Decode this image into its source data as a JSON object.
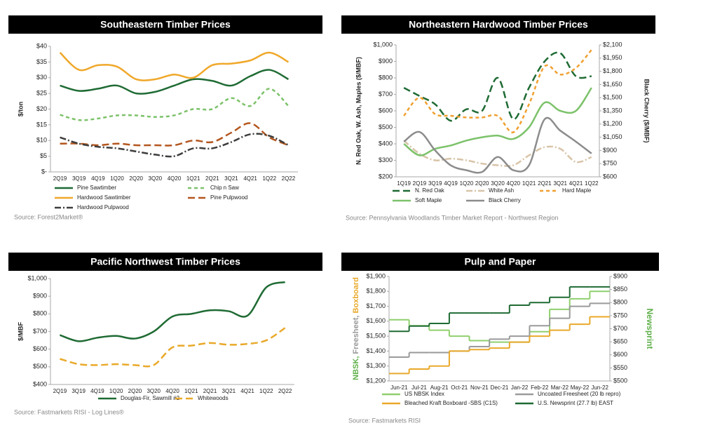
{
  "chart_data": [
    {
      "type": "line",
      "title": "Southeastern Timber Prices",
      "y_label": "$/ton",
      "source": "Source: Forest2Market®",
      "categories": [
        "2Q19",
        "3Q19",
        "4Q19",
        "1Q20",
        "2Q20",
        "3Q20",
        "4Q20",
        "1Q21",
        "2Q21",
        "3Q21",
        "4Q21",
        "1Q22",
        "2Q22"
      ],
      "ylim": [
        0,
        40
      ],
      "yticks": [
        {
          "value": 0,
          "label": "$-"
        },
        {
          "value": 5,
          "label": "$5"
        },
        {
          "value": 10,
          "label": "$10"
        },
        {
          "value": 15,
          "label": "$15"
        },
        {
          "value": 20,
          "label": "$20"
        },
        {
          "value": 25,
          "label": "$25"
        },
        {
          "value": 30,
          "label": "$30"
        },
        {
          "value": 35,
          "label": "$35"
        },
        {
          "value": 40,
          "label": "$40"
        }
      ],
      "series": [
        {
          "name": "Pine Sawtimber",
          "color": "#1f6b34",
          "dash": "solid",
          "values": [
            27.5,
            25.8,
            26.5,
            27.5,
            25,
            25.5,
            27.5,
            29.5,
            29,
            27.5,
            30.5,
            32.5,
            29.5
          ]
        },
        {
          "name": "Chip n Saw",
          "color": "#7cc26a",
          "dash": "dash",
          "values": [
            18.2,
            16.5,
            17,
            18,
            18,
            17.5,
            18,
            20,
            20,
            23.5,
            21,
            26.5,
            21
          ]
        },
        {
          "name": "Hardwood Sawtimber",
          "color": "#f0a82a",
          "dash": "solid",
          "values": [
            38,
            32.5,
            34,
            33.5,
            29.5,
            29.5,
            31,
            30,
            34,
            34.5,
            35.5,
            38,
            35
          ]
        },
        {
          "name": "Pine Pulpwood",
          "color": "#b3561e",
          "dash": "longdash",
          "values": [
            9,
            9,
            8.5,
            9,
            8.5,
            8.5,
            8.5,
            10,
            9.5,
            12.5,
            15.5,
            11,
            8.5
          ]
        },
        {
          "name": "Hardwood Pulpwood",
          "color": "#3d3d3d",
          "dash": "dashdot",
          "values": [
            11,
            9,
            8,
            7.5,
            6.5,
            5.5,
            5,
            7.5,
            7.5,
            9.5,
            12,
            11.5,
            8.5
          ]
        }
      ]
    },
    {
      "type": "line",
      "title": "Northeastern Hardwood Timber Prices",
      "y_label": "N. Red Oak, W. Ash, Maples ($/MBF)",
      "y2_label": "Black Cherry ($/MBF)",
      "source": "Source: Pennsylvania Woodlands Timber Market Report - Northwest Region",
      "categories": [
        "1Q19",
        "2Q19",
        "3Q19",
        "4Q19",
        "1Q20",
        "2Q20",
        "3Q20",
        "4Q20",
        "1Q21",
        "2Q21",
        "3Q21",
        "4Q21",
        "1Q22"
      ],
      "ylim": [
        200,
        1000
      ],
      "yticks": [
        {
          "value": 200,
          "label": "$200"
        },
        {
          "value": 300,
          "label": "$300"
        },
        {
          "value": 400,
          "label": "$400"
        },
        {
          "value": 500,
          "label": "$500"
        },
        {
          "value": 600,
          "label": "$600"
        },
        {
          "value": 700,
          "label": "$700"
        },
        {
          "value": 800,
          "label": "$800"
        },
        {
          "value": 900,
          "label": "$900"
        },
        {
          "value": 1000,
          "label": "$1,000"
        }
      ],
      "y2lim": [
        600,
        2100
      ],
      "y2ticks": [
        {
          "value": 600,
          "label": "$600"
        },
        {
          "value": 750,
          "label": "$750"
        },
        {
          "value": 900,
          "label": "$900"
        },
        {
          "value": 1050,
          "label": "$1,050"
        },
        {
          "value": 1200,
          "label": "$1,200"
        },
        {
          "value": 1350,
          "label": "$1,350"
        },
        {
          "value": 1500,
          "label": "$1,500"
        },
        {
          "value": 1650,
          "label": "$1,650"
        },
        {
          "value": 1800,
          "label": "$1,800"
        },
        {
          "value": 1950,
          "label": "$1,950"
        },
        {
          "value": 2100,
          "label": "$2,100"
        }
      ],
      "series": [
        {
          "name": "N. Red Oak",
          "color": "#1f6b34",
          "dash": "longdash",
          "values": [
            740,
            690,
            640,
            540,
            610,
            600,
            800,
            550,
            740,
            900,
            950,
            810,
            810
          ]
        },
        {
          "name": "White Ash",
          "color": "#d8c4a8",
          "dash": "dashdot",
          "values": [
            420,
            340,
            300,
            310,
            300,
            280,
            270,
            270,
            330,
            380,
            370,
            290,
            320
          ]
        },
        {
          "name": "Hard Maple",
          "color": "#f0a030",
          "dash": "dash",
          "values": [
            570,
            680,
            580,
            570,
            560,
            560,
            570,
            470,
            640,
            870,
            820,
            860,
            970
          ]
        },
        {
          "name": "Soft Maple",
          "color": "#7cc26a",
          "dash": "solid",
          "values": [
            400,
            330,
            370,
            390,
            420,
            440,
            450,
            430,
            500,
            650,
            600,
            600,
            740
          ]
        },
        {
          "name": "Black Cherry",
          "color": "#8c8c8c",
          "dash": "solid",
          "axis": "y2",
          "values": [
            1000,
            1110,
            900,
            730,
            675,
            655,
            825,
            675,
            730,
            1255,
            1125,
            1000,
            865
          ]
        }
      ]
    },
    {
      "type": "line",
      "title": "Pacific Northwest Timber Prices",
      "y_label": "$/MBF",
      "source": "Source: Fastmarkets RISI - Log Lines®",
      "categories": [
        "2Q19",
        "3Q19",
        "4Q19",
        "1Q20",
        "2Q20",
        "3Q20",
        "4Q20",
        "1Q21",
        "2Q21",
        "3Q21",
        "4Q21",
        "1Q22",
        "2Q22"
      ],
      "ylim": [
        400,
        1000
      ],
      "yticks": [
        {
          "value": 400,
          "label": "$400"
        },
        {
          "value": 500,
          "label": "$500"
        },
        {
          "value": 600,
          "label": "$600"
        },
        {
          "value": 700,
          "label": "$700"
        },
        {
          "value": 800,
          "label": "$800"
        },
        {
          "value": 900,
          "label": "$900"
        },
        {
          "value": 1000,
          "label": "$1,000"
        }
      ],
      "series": [
        {
          "name": "Douglas-Fir, Sawmill #2",
          "color": "#1f6b34",
          "dash": "solid",
          "values": [
            680,
            645,
            665,
            675,
            660,
            700,
            785,
            800,
            820,
            815,
            790,
            950,
            980
          ]
        },
        {
          "name": "Whitewoods",
          "color": "#e9a92a",
          "dash": "longdash",
          "values": [
            545,
            515,
            510,
            515,
            510,
            510,
            610,
            620,
            635,
            625,
            630,
            650,
            720
          ]
        }
      ]
    },
    {
      "type": "step",
      "title": "Pulp and Paper",
      "y_label": [
        "NBSK,",
        "Freesheet,",
        "Boxboard"
      ],
      "y_label_colors": [
        "#5fb04a",
        "#9a9a9a",
        "#e9a92a"
      ],
      "y2_label": "Newsprint",
      "y2_label_color": "#5fb04a",
      "source": "Source: Fastmarkets RISI",
      "categories": [
        "Jun-21",
        "Jul-21",
        "Aug-21",
        "Oct-21",
        "Nov-21",
        "Dec-21",
        "Jan-22",
        "Feb-22",
        "Mar-22",
        "May-22",
        "Jun-22"
      ],
      "ylim": [
        1200,
        1900
      ],
      "yticks": [
        {
          "value": 1200,
          "label": "$1,200"
        },
        {
          "value": 1300,
          "label": "$1,300"
        },
        {
          "value": 1400,
          "label": "$1,400"
        },
        {
          "value": 1500,
          "label": "$1,500"
        },
        {
          "value": 1600,
          "label": "$1,600"
        },
        {
          "value": 1700,
          "label": "$1,700"
        },
        {
          "value": 1800,
          "label": "$1,800"
        },
        {
          "value": 1900,
          "label": "$1,900"
        }
      ],
      "y2lim": [
        500,
        900
      ],
      "y2ticks": [
        {
          "value": 500,
          "label": "$500"
        },
        {
          "value": 550,
          "label": "$550"
        },
        {
          "value": 600,
          "label": "$600"
        },
        {
          "value": 650,
          "label": "$650"
        },
        {
          "value": 700,
          "label": "$700"
        },
        {
          "value": 750,
          "label": "$750"
        },
        {
          "value": 800,
          "label": "$800"
        },
        {
          "value": 850,
          "label": "$850"
        },
        {
          "value": 900,
          "label": "$900"
        }
      ],
      "series": [
        {
          "name": "US NBSK Index",
          "color": "#8fcf6e",
          "dash": "solid",
          "values": [
            1610,
            1570,
            1540,
            1500,
            1470,
            1460,
            1460,
            1530,
            1680,
            1750,
            1800
          ]
        },
        {
          "name": "Uncoated Freesheet (20 lb repro)",
          "color": "#9a9a9a",
          "dash": "solid",
          "values": [
            1360,
            1390,
            1390,
            1400,
            1430,
            1480,
            1500,
            1570,
            1620,
            1700,
            1720
          ]
        },
        {
          "name": "Bleached Kraft Boxboard -SBS (C1S)",
          "color": "#e9a92a",
          "dash": "solid",
          "values": [
            1250,
            1280,
            1300,
            1400,
            1410,
            1420,
            1460,
            1500,
            1540,
            1580,
            1630
          ]
        },
        {
          "name": "U.S. Newsprint (27.7 lb) EAST",
          "color": "#1f6b34",
          "dash": "solid",
          "axis": "y2",
          "values": [
            690,
            710,
            720,
            760,
            760,
            760,
            790,
            800,
            820,
            860,
            860
          ]
        }
      ]
    }
  ]
}
